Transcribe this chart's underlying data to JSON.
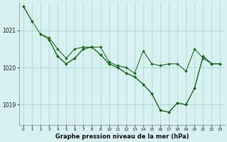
{
  "background_color": "#d7f0f0",
  "grid_color": "#aed4d4",
  "line_color": "#1a6b1a",
  "marker_color": "#1a6b1a",
  "title": "Graphe pression niveau de la mer (hPa)",
  "xlim": [
    -0.5,
    23.5
  ],
  "ylim": [
    1018.45,
    1021.75
  ],
  "yticks": [
    1019,
    1020,
    1021
  ],
  "xticks": [
    0,
    1,
    2,
    3,
    4,
    5,
    6,
    7,
    8,
    9,
    10,
    11,
    12,
    13,
    14,
    15,
    16,
    17,
    18,
    19,
    20,
    21,
    22,
    23
  ],
  "series": [
    [
      1021.65,
      1021.25,
      null,
      null,
      null,
      null,
      null,
      null,
      null,
      null,
      null,
      null,
      null,
      null,
      null,
      null,
      null,
      null,
      null,
      null,
      null,
      null,
      null,
      null
    ],
    [
      1021.65,
      1021.25,
      1020.9,
      1020.8,
      1020.5,
      1020.25,
      1020.5,
      1020.55,
      1020.55,
      1020.55,
      1020.15,
      1020.05,
      1020.0,
      1019.85,
      1020.45,
      1020.1,
      1020.05,
      1020.1,
      1020.1,
      1019.9,
      1020.5,
      1020.25,
      1020.1,
      null
    ],
    [
      null,
      null,
      1020.9,
      1020.75,
      1020.3,
      1020.1,
      1020.25,
      1020.5,
      1020.55,
      1020.35,
      1020.1,
      1020.0,
      1019.85,
      1019.75,
      1019.55,
      1019.3,
      1018.85,
      1018.8,
      1019.05,
      1019.0,
      1019.45,
      1020.3,
      1020.1,
      1020.1
    ],
    [
      null,
      null,
      null,
      1020.75,
      1020.3,
      1020.1,
      1020.25,
      1020.5,
      1020.55,
      1020.35,
      1020.1,
      1020.0,
      1019.85,
      1019.75,
      1019.55,
      1019.3,
      1018.85,
      1018.8,
      1019.05,
      1019.0,
      1019.45,
      1020.3,
      1020.1,
      1020.1
    ]
  ]
}
